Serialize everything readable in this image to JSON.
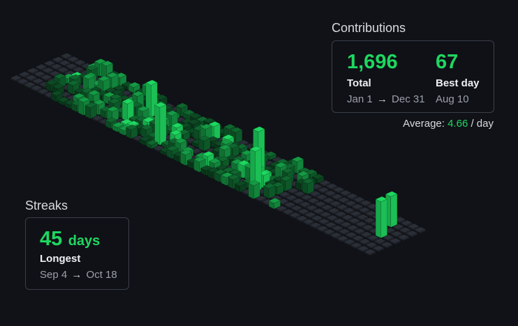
{
  "contributions": {
    "title": "Contributions",
    "total_value": "1,696",
    "total_label": "Total",
    "range_start": "Jan 1",
    "range_arrow": "→",
    "range_end": "Dec 31",
    "best_value": "67",
    "best_label": "Best day",
    "best_date": "Aug 10",
    "average_prefix": "Average:",
    "average_value": "4.66",
    "average_suffix": "/ day"
  },
  "streaks": {
    "title": "Streaks",
    "longest_value": "45",
    "longest_unit": "days",
    "longest_label": "Longest",
    "range_start": "Sep 4",
    "range_arrow": "→",
    "range_end": "Oct 18"
  },
  "colors": {
    "background": "#101217",
    "accent": "#1ed760",
    "empty_cell": "#2a2e36",
    "level_1": "#0d4a24",
    "level_2": "#10662f",
    "level_3": "#159a45",
    "level_4": "#1ed760"
  },
  "calendar": {
    "weeks": 53,
    "days": 7
  }
}
